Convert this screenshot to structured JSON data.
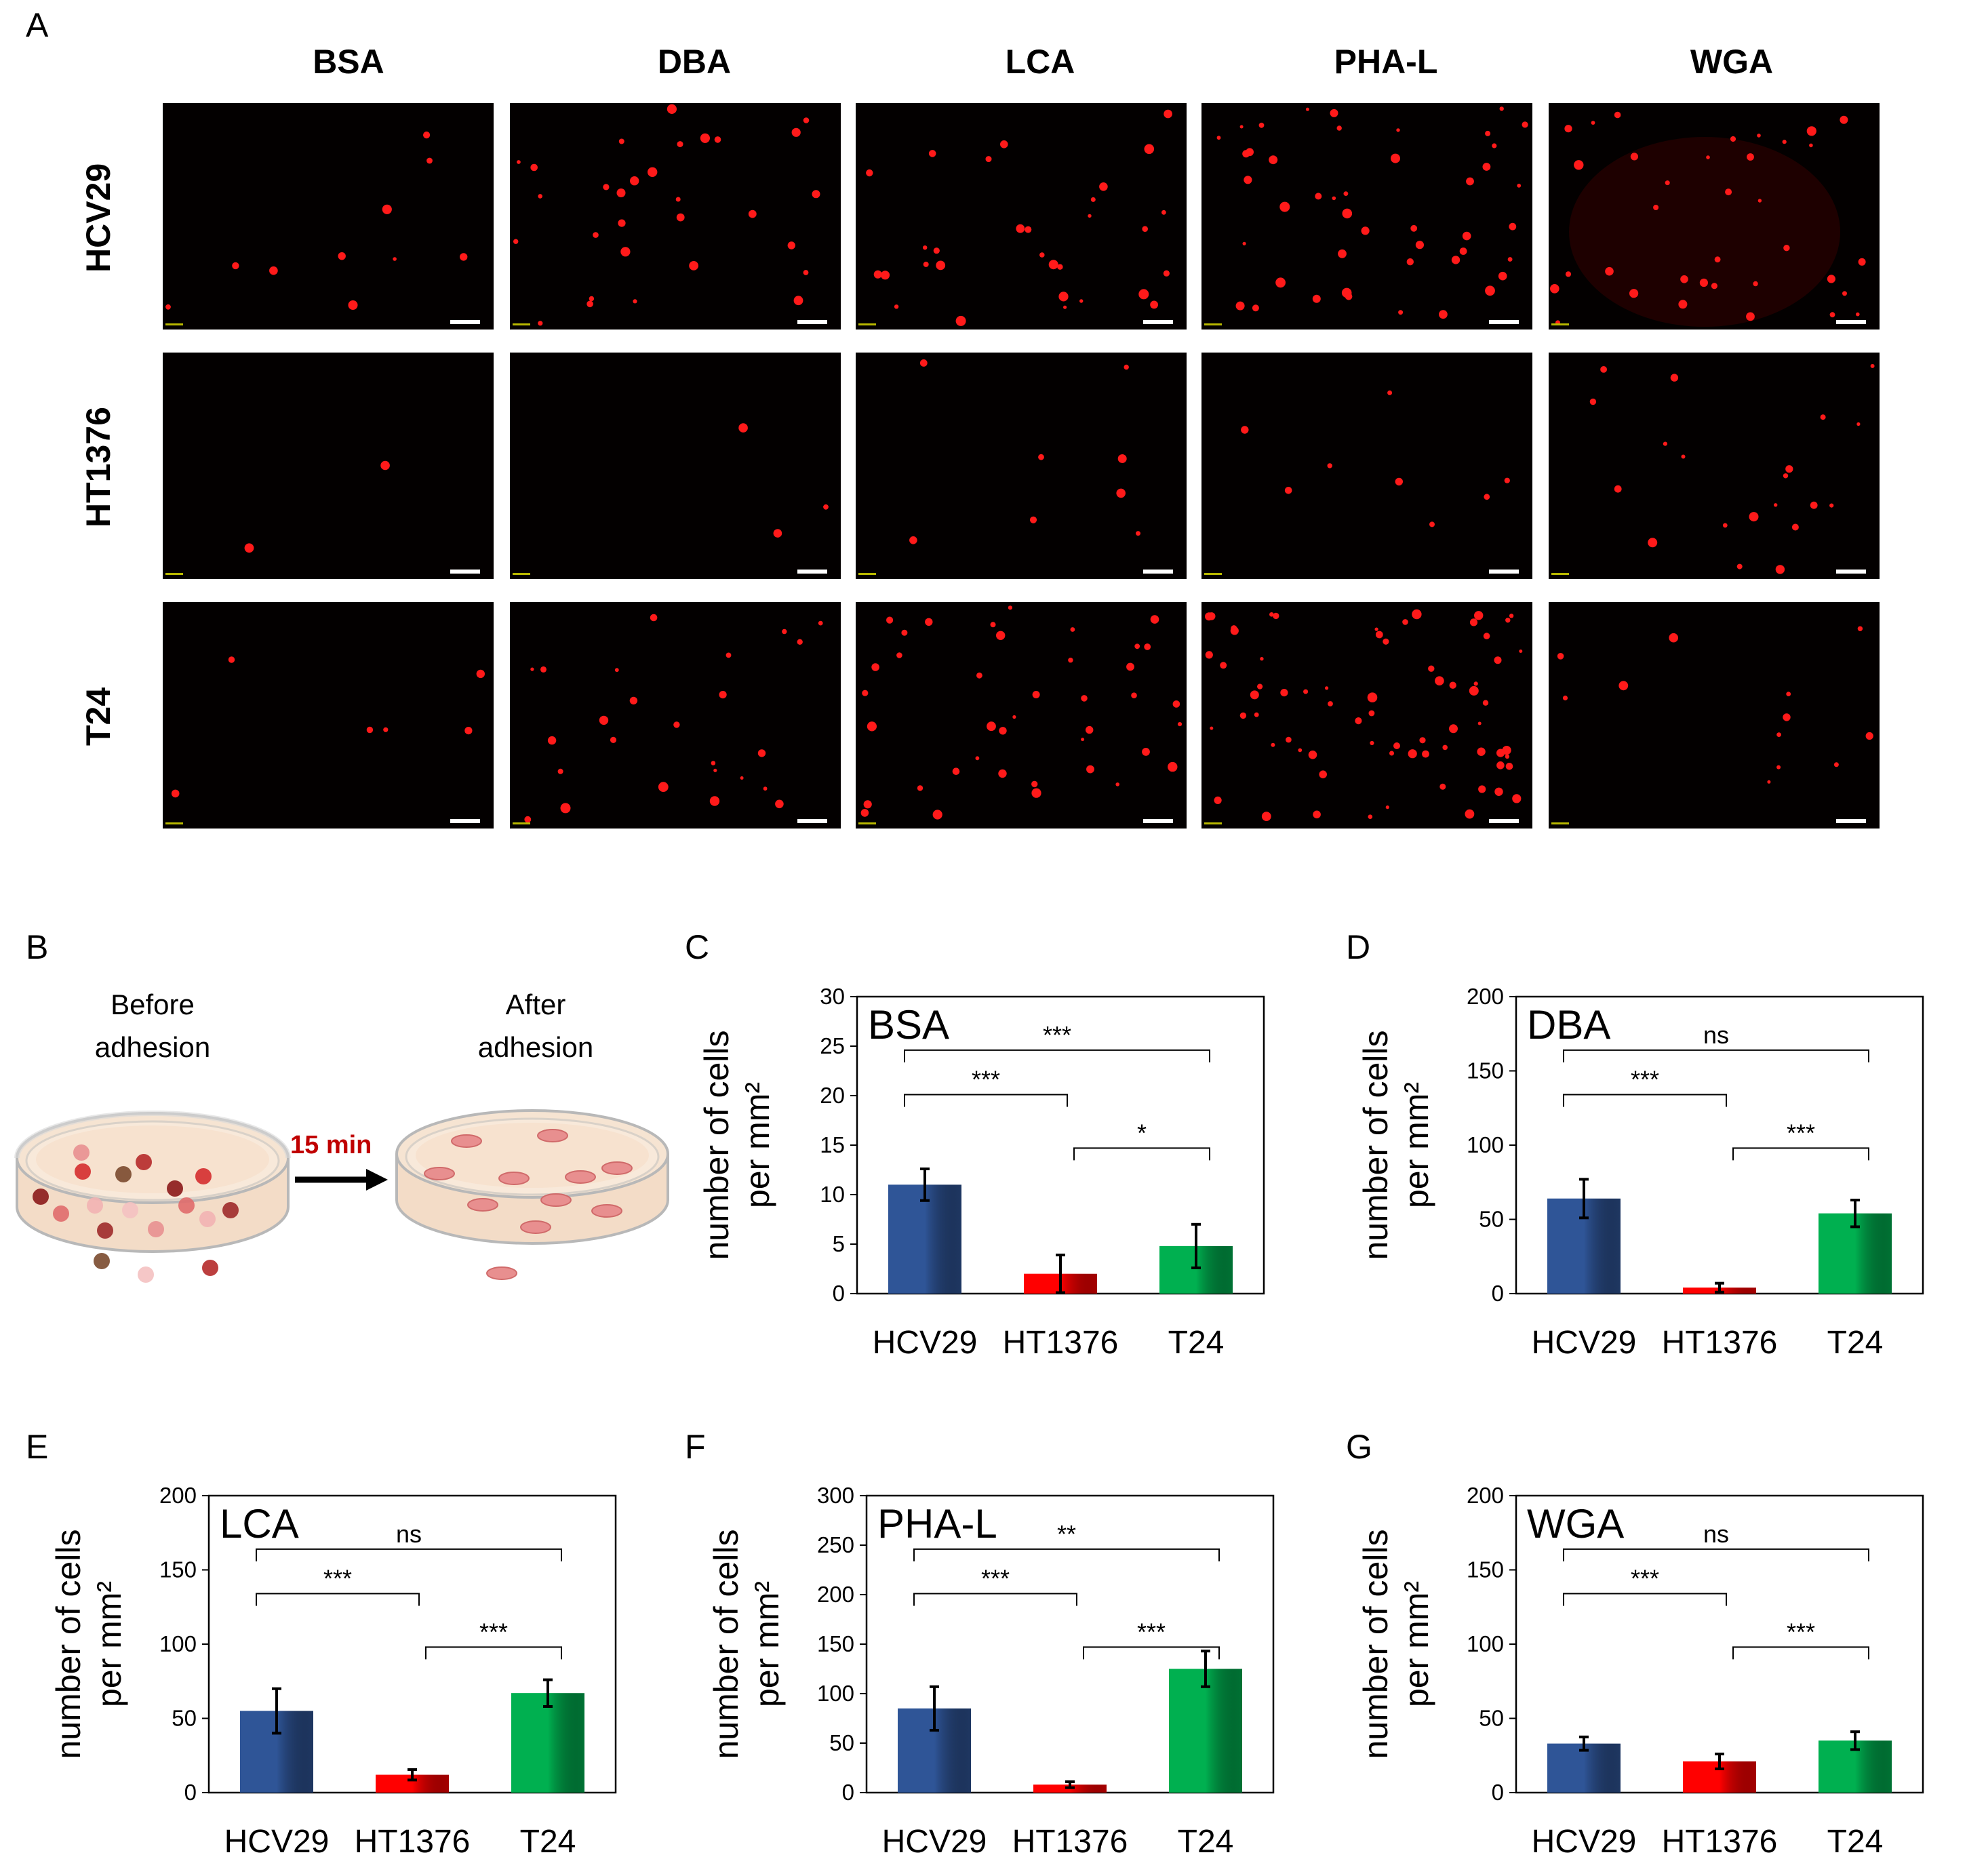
{
  "panel_a": {
    "letter": "A",
    "columns": [
      "BSA",
      "DBA",
      "LCA",
      "PHA-L",
      "WGA"
    ],
    "rows": [
      "HCV29",
      "HT1376",
      "T24"
    ]
  },
  "panel_b": {
    "letter": "B",
    "before_label": "Before adhesion",
    "after_label": "After adhesion",
    "time_label": "15 min",
    "time_color": "#c00000"
  },
  "colors": {
    "HCV29": "#2f5597",
    "HT1376": "#ff0000",
    "T24": "#00b050",
    "fluorescence": "#ff1a1a"
  },
  "chart_data": [
    {
      "panel": "C",
      "type": "bar",
      "title": "BSA",
      "ylabel": [
        "number of cells",
        "per mm²"
      ],
      "categories": [
        "HCV29",
        "HT1376",
        "T24"
      ],
      "values": [
        11,
        2,
        4.8
      ],
      "errors": [
        1.6,
        1.9,
        2.2
      ],
      "ylim": [
        0,
        30
      ],
      "yticks": [
        0,
        5,
        10,
        15,
        20,
        25,
        30
      ],
      "significance": [
        {
          "from": 0,
          "to": 1,
          "label": "***"
        },
        {
          "from": 1,
          "to": 2,
          "label": "*"
        },
        {
          "from": 0,
          "to": 2,
          "label": "***"
        }
      ]
    },
    {
      "panel": "D",
      "type": "bar",
      "title": "DBA",
      "ylabel": [
        "number of cells",
        "per mm²"
      ],
      "categories": [
        "HCV29",
        "HT1376",
        "T24"
      ],
      "values": [
        64,
        4,
        54
      ],
      "errors": [
        13,
        3,
        9
      ],
      "ylim": [
        0,
        200
      ],
      "yticks": [
        0,
        50,
        100,
        150,
        200
      ],
      "significance": [
        {
          "from": 0,
          "to": 1,
          "label": "***"
        },
        {
          "from": 1,
          "to": 2,
          "label": "***"
        },
        {
          "from": 0,
          "to": 2,
          "label": "ns"
        }
      ]
    },
    {
      "panel": "E",
      "type": "bar",
      "title": "LCA",
      "ylabel": [
        "number of cells",
        "per mm²"
      ],
      "categories": [
        "HCV29",
        "HT1376",
        "T24"
      ],
      "values": [
        55,
        12,
        67
      ],
      "errors": [
        15,
        3.5,
        9
      ],
      "ylim": [
        0,
        200
      ],
      "yticks": [
        0,
        50,
        100,
        150,
        200
      ],
      "significance": [
        {
          "from": 0,
          "to": 1,
          "label": "***"
        },
        {
          "from": 1,
          "to": 2,
          "label": "***"
        },
        {
          "from": 0,
          "to": 2,
          "label": "ns"
        }
      ]
    },
    {
      "panel": "F",
      "type": "bar",
      "title": "PHA-L",
      "ylabel": [
        "number of cells",
        "per mm²"
      ],
      "categories": [
        "HCV29",
        "HT1376",
        "T24"
      ],
      "values": [
        85,
        8,
        125
      ],
      "errors": [
        22,
        3,
        18
      ],
      "ylim": [
        0,
        300
      ],
      "yticks": [
        0,
        50,
        100,
        150,
        200,
        250,
        300
      ],
      "significance": [
        {
          "from": 0,
          "to": 1,
          "label": "***"
        },
        {
          "from": 1,
          "to": 2,
          "label": "***"
        },
        {
          "from": 0,
          "to": 2,
          "label": "**"
        }
      ]
    },
    {
      "panel": "G",
      "type": "bar",
      "title": "WGA",
      "ylabel": [
        "number of cells",
        "per mm²"
      ],
      "categories": [
        "HCV29",
        "HT1376",
        "T24"
      ],
      "values": [
        33,
        21,
        35
      ],
      "errors": [
        4.5,
        5,
        6
      ],
      "ylim": [
        0,
        200
      ],
      "yticks": [
        0,
        50,
        100,
        150,
        200
      ],
      "significance": [
        {
          "from": 0,
          "to": 1,
          "label": "***"
        },
        {
          "from": 1,
          "to": 2,
          "label": "***"
        },
        {
          "from": 0,
          "to": 2,
          "label": "ns"
        }
      ]
    }
  ]
}
